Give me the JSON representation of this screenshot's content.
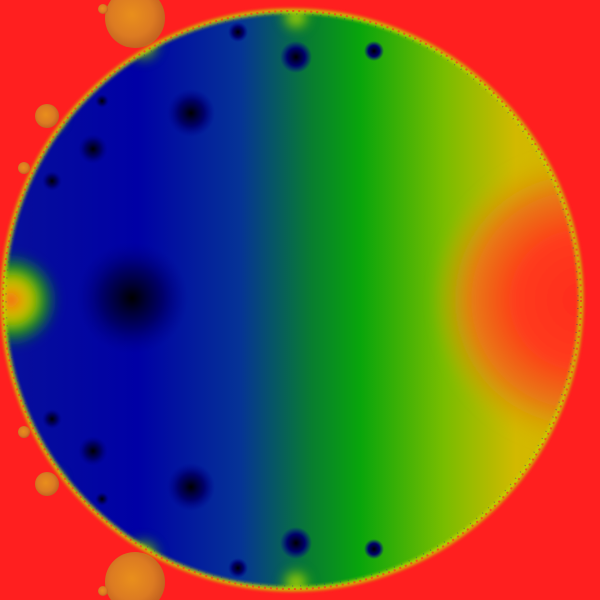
{
  "image": {
    "subject": "complex-function-fractal-render",
    "palette": {
      "background": "#ff1f1f",
      "deep_blue": "#0000a8",
      "blue": "#0b2fa0",
      "green": "#0aa20a",
      "yellow": "#d6b800",
      "orange": "#e28a15",
      "bud_orange": "#dd7f1e",
      "black": "#000000"
    }
  }
}
